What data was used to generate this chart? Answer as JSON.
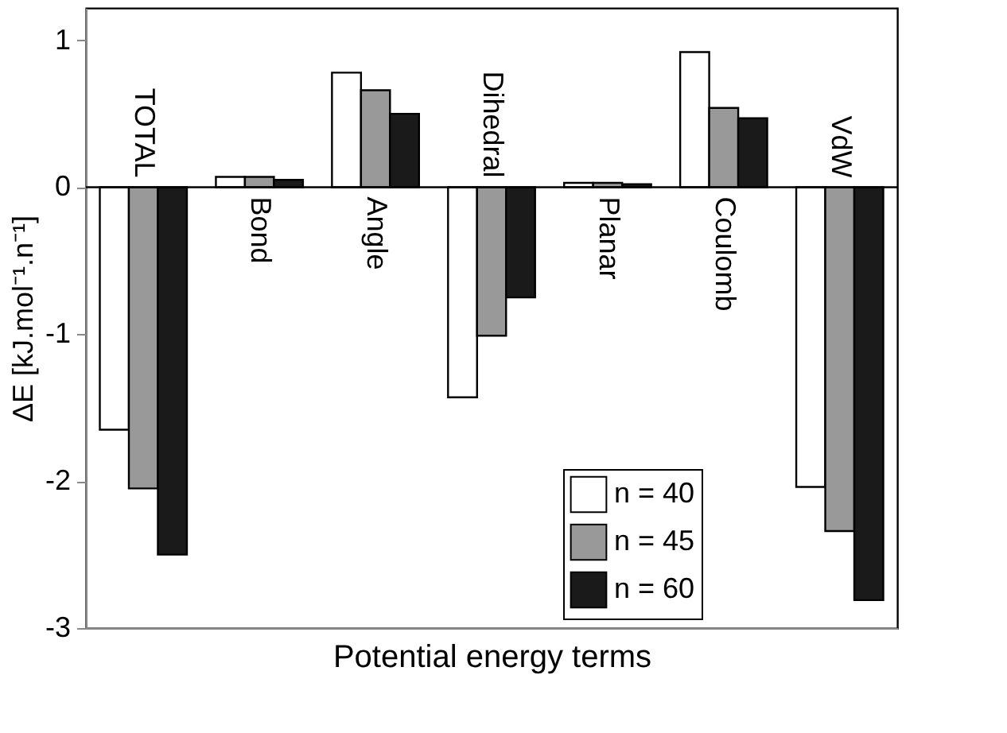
{
  "chart_data": {
    "type": "bar",
    "xlabel": "Potential energy terms",
    "ylabel": "ΔE [kJ.mol⁻¹.n⁻¹]",
    "categories": [
      "TOTAL",
      "Bond",
      "Angle",
      "Dihedral",
      "Planar",
      "Coulomb",
      "VdW"
    ],
    "series": [
      {
        "name": "n = 40",
        "color": "#ffffff",
        "values": [
          -1.65,
          0.07,
          0.78,
          -1.43,
          0.03,
          0.92,
          -2.04
        ]
      },
      {
        "name": "n = 45",
        "color": "#999999",
        "values": [
          -2.05,
          0.07,
          0.66,
          -1.01,
          0.03,
          0.54,
          -2.34
        ]
      },
      {
        "name": "n = 60",
        "color": "#1a1a1a",
        "values": [
          -2.5,
          0.05,
          0.5,
          -0.75,
          0.02,
          0.47,
          -2.81
        ]
      }
    ],
    "ylim": [
      -3,
      1.22
    ],
    "yticks": [
      -3,
      -2,
      -1,
      0,
      1
    ],
    "grid": false,
    "legend": "bottom"
  }
}
